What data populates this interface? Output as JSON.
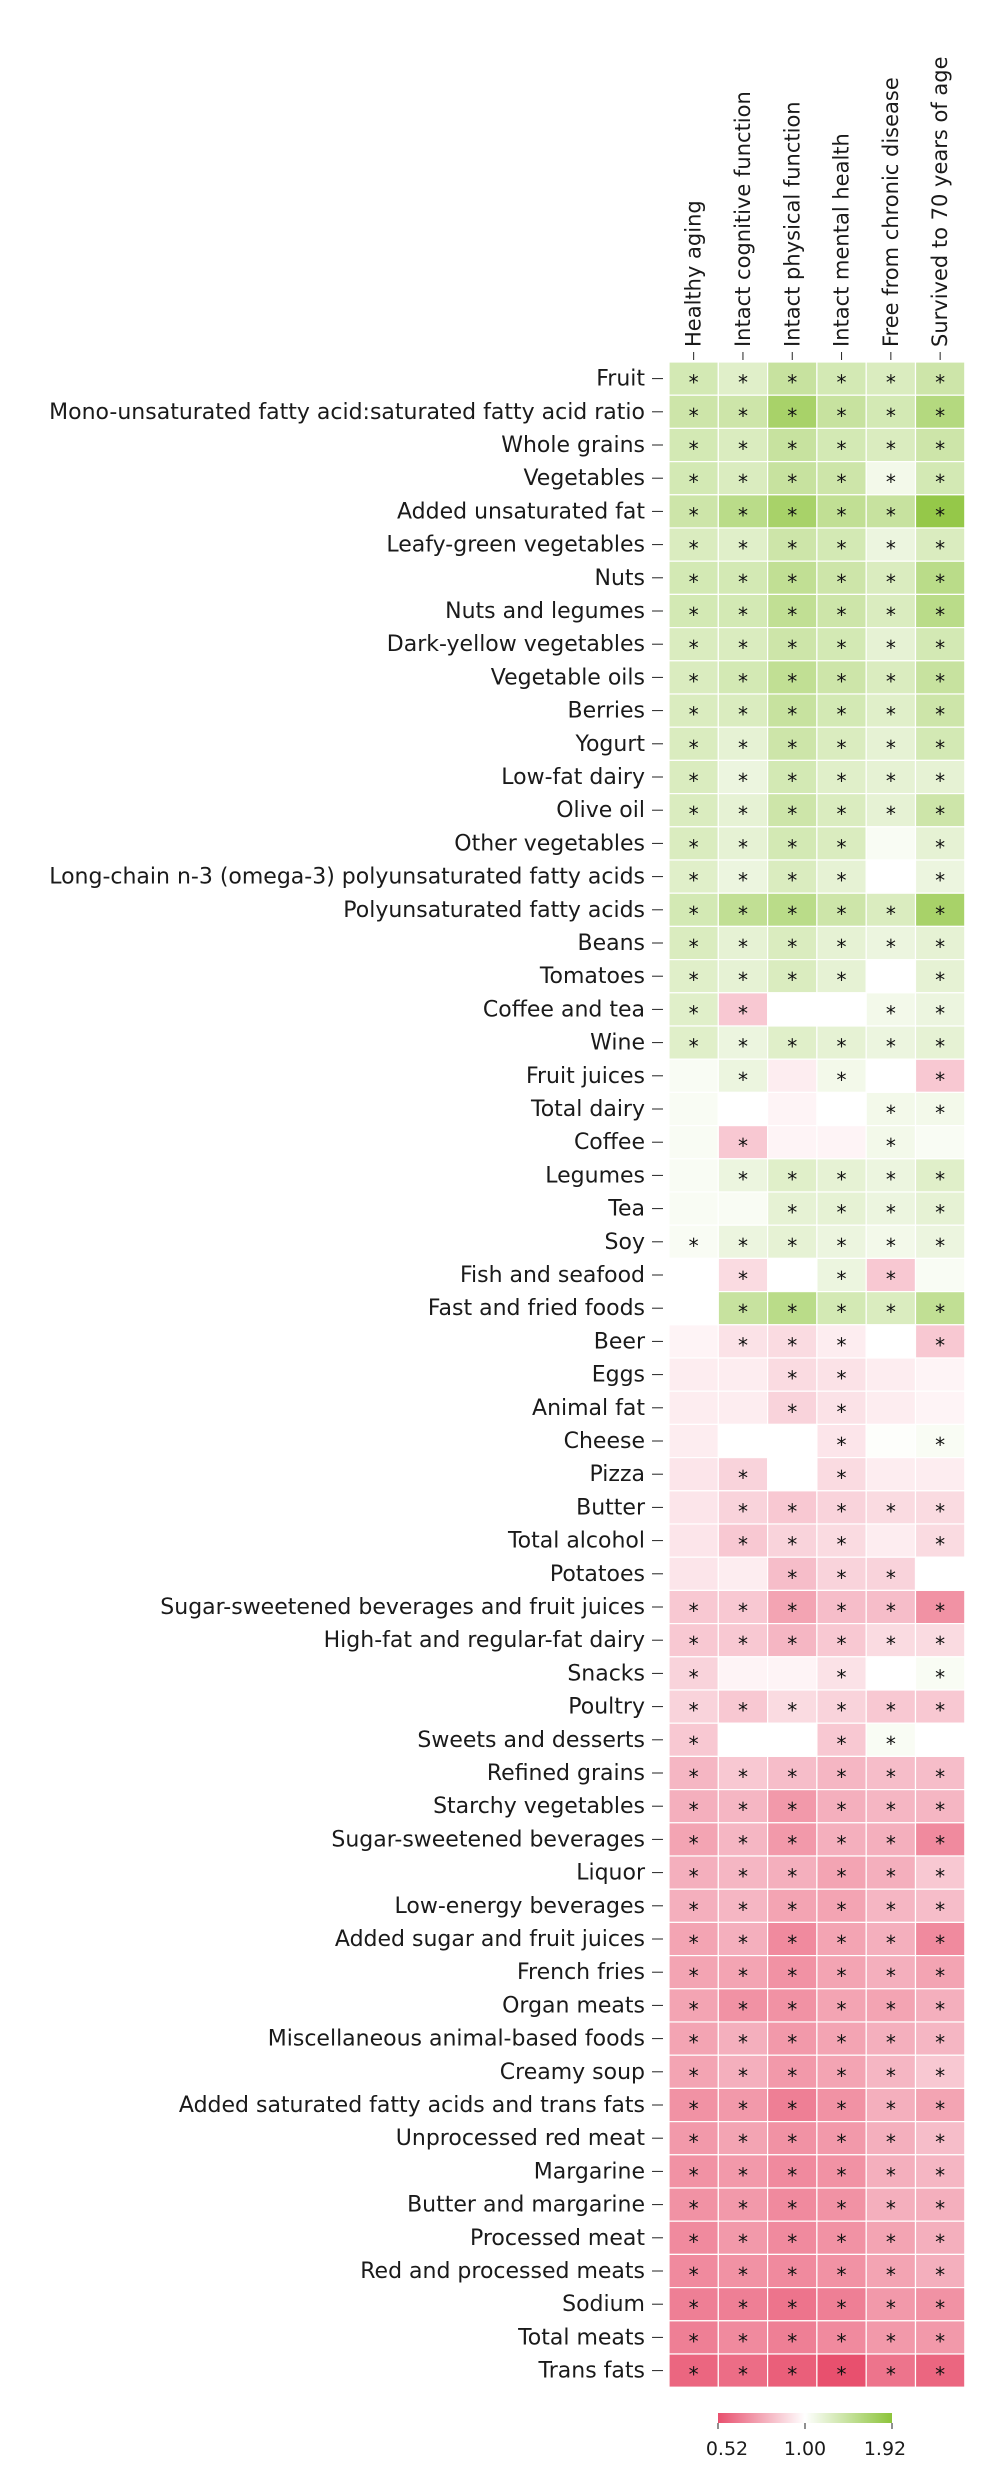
{
  "chart_data": {
    "type": "heatmap",
    "title": "",
    "columns": [
      "Healthy aging",
      "Intact cognitive function",
      "Intact physical function",
      "Intact mental health",
      "Free from chronic disease",
      "Survived to 70 years of age"
    ],
    "rows": [
      {
        "label": "Fruit",
        "values": [
          1.35,
          1.25,
          1.45,
          1.35,
          1.3,
          1.4
        ],
        "sig": [
          1,
          1,
          1,
          1,
          1,
          1
        ]
      },
      {
        "label": "Mono-unsaturated fatty acid:saturated fatty acid ratio",
        "values": [
          1.4,
          1.4,
          1.7,
          1.45,
          1.35,
          1.6
        ],
        "sig": [
          1,
          1,
          1,
          1,
          1,
          1
        ]
      },
      {
        "label": "Whole grains",
        "values": [
          1.35,
          1.3,
          1.45,
          1.35,
          1.3,
          1.4
        ],
        "sig": [
          1,
          1,
          1,
          1,
          1,
          1
        ]
      },
      {
        "label": "Vegetables",
        "values": [
          1.35,
          1.3,
          1.45,
          1.4,
          1.1,
          1.35
        ],
        "sig": [
          1,
          1,
          1,
          1,
          1,
          1
        ]
      },
      {
        "label": "Added unsaturated fat",
        "values": [
          1.4,
          1.55,
          1.7,
          1.5,
          1.45,
          1.85
        ],
        "sig": [
          1,
          1,
          1,
          1,
          1,
          1
        ]
      },
      {
        "label": "Leafy-green vegetables",
        "values": [
          1.3,
          1.25,
          1.4,
          1.35,
          1.15,
          1.3
        ],
        "sig": [
          1,
          1,
          1,
          1,
          1,
          1
        ]
      },
      {
        "label": "Nuts",
        "values": [
          1.35,
          1.35,
          1.5,
          1.4,
          1.3,
          1.55
        ],
        "sig": [
          1,
          1,
          1,
          1,
          1,
          1
        ]
      },
      {
        "label": "Nuts and legumes",
        "values": [
          1.35,
          1.35,
          1.5,
          1.4,
          1.3,
          1.55
        ],
        "sig": [
          1,
          1,
          1,
          1,
          1,
          1
        ]
      },
      {
        "label": "Dark-yellow vegetables",
        "values": [
          1.3,
          1.3,
          1.4,
          1.35,
          1.2,
          1.35
        ],
        "sig": [
          1,
          1,
          1,
          1,
          1,
          1
        ]
      },
      {
        "label": "Vegetable oils",
        "values": [
          1.3,
          1.35,
          1.5,
          1.4,
          1.3,
          1.45
        ],
        "sig": [
          1,
          1,
          1,
          1,
          1,
          1
        ]
      },
      {
        "label": "Berries",
        "values": [
          1.3,
          1.3,
          1.45,
          1.35,
          1.25,
          1.4
        ],
        "sig": [
          1,
          1,
          1,
          1,
          1,
          1
        ]
      },
      {
        "label": "Yogurt",
        "values": [
          1.3,
          1.2,
          1.4,
          1.3,
          1.2,
          1.35
        ],
        "sig": [
          1,
          1,
          1,
          1,
          1,
          1
        ]
      },
      {
        "label": "Low-fat dairy",
        "values": [
          1.3,
          1.15,
          1.35,
          1.25,
          1.2,
          1.2
        ],
        "sig": [
          1,
          1,
          1,
          1,
          1,
          1
        ]
      },
      {
        "label": "Olive oil",
        "values": [
          1.3,
          1.2,
          1.4,
          1.3,
          1.2,
          1.4
        ],
        "sig": [
          1,
          1,
          1,
          1,
          1,
          1
        ]
      },
      {
        "label": "Other vegetables",
        "values": [
          1.3,
          1.2,
          1.35,
          1.3,
          1.05,
          1.2
        ],
        "sig": [
          1,
          1,
          1,
          1,
          0,
          1
        ]
      },
      {
        "label": "Long-chain n-3 (omega-3) polyunsaturated fatty acids",
        "values": [
          1.25,
          1.15,
          1.3,
          1.2,
          1.0,
          1.15
        ],
        "sig": [
          1,
          1,
          1,
          1,
          0,
          1
        ]
      },
      {
        "label": "Polyunsaturated fatty acids",
        "values": [
          1.35,
          1.5,
          1.55,
          1.4,
          1.3,
          1.7
        ],
        "sig": [
          1,
          1,
          1,
          1,
          1,
          1
        ]
      },
      {
        "label": "Beans",
        "values": [
          1.3,
          1.2,
          1.3,
          1.2,
          1.15,
          1.2
        ],
        "sig": [
          1,
          1,
          1,
          1,
          1,
          1
        ]
      },
      {
        "label": "Tomatoes",
        "values": [
          1.25,
          1.2,
          1.3,
          1.2,
          1.0,
          1.2
        ],
        "sig": [
          1,
          1,
          1,
          1,
          0,
          1
        ]
      },
      {
        "label": "Coffee and tea",
        "values": [
          1.25,
          0.85,
          1.0,
          1.0,
          1.1,
          1.15
        ],
        "sig": [
          1,
          1,
          0,
          0,
          1,
          1
        ]
      },
      {
        "label": "Wine",
        "values": [
          1.25,
          1.15,
          1.25,
          1.2,
          1.15,
          1.2
        ],
        "sig": [
          1,
          1,
          1,
          1,
          1,
          1
        ]
      },
      {
        "label": "Fruit juices",
        "values": [
          1.05,
          1.15,
          0.95,
          1.1,
          1.0,
          0.85
        ],
        "sig": [
          0,
          1,
          0,
          1,
          0,
          1
        ]
      },
      {
        "label": "Total dairy",
        "values": [
          1.05,
          1.0,
          0.97,
          1.0,
          1.1,
          1.1
        ],
        "sig": [
          0,
          0,
          0,
          0,
          1,
          1
        ]
      },
      {
        "label": "Coffee",
        "values": [
          1.05,
          0.85,
          0.97,
          0.97,
          1.1,
          1.05
        ],
        "sig": [
          0,
          1,
          0,
          0,
          1,
          0
        ]
      },
      {
        "label": "Legumes",
        "values": [
          1.05,
          1.15,
          1.25,
          1.2,
          1.15,
          1.25
        ],
        "sig": [
          0,
          1,
          1,
          1,
          1,
          1
        ]
      },
      {
        "label": "Tea",
        "values": [
          1.05,
          1.05,
          1.2,
          1.2,
          1.15,
          1.2
        ],
        "sig": [
          0,
          0,
          1,
          1,
          1,
          1
        ]
      },
      {
        "label": "Soy",
        "values": [
          1.05,
          1.15,
          1.2,
          1.15,
          1.1,
          1.15
        ],
        "sig": [
          1,
          1,
          1,
          1,
          1,
          1
        ]
      },
      {
        "label": "Fish and seafood",
        "values": [
          1.0,
          0.9,
          1.0,
          1.15,
          0.85,
          1.05
        ],
        "sig": [
          0,
          1,
          0,
          1,
          1,
          0
        ]
      },
      {
        "label": "Fast and fried foods",
        "values": [
          1.0,
          1.45,
          1.55,
          1.35,
          1.3,
          1.5
        ],
        "sig": [
          0,
          1,
          1,
          1,
          1,
          1
        ]
      },
      {
        "label": "Beer",
        "values": [
          0.97,
          0.92,
          0.9,
          0.95,
          1.0,
          0.85
        ],
        "sig": [
          0,
          1,
          1,
          1,
          0,
          1
        ]
      },
      {
        "label": "Eggs",
        "values": [
          0.95,
          0.95,
          0.9,
          0.92,
          0.95,
          0.97
        ],
        "sig": [
          0,
          0,
          1,
          1,
          0,
          0
        ]
      },
      {
        "label": "Animal fat",
        "values": [
          0.95,
          0.95,
          0.88,
          0.92,
          0.95,
          0.97
        ],
        "sig": [
          0,
          0,
          1,
          1,
          0,
          0
        ]
      },
      {
        "label": "Cheese",
        "values": [
          0.95,
          1.0,
          1.0,
          0.93,
          1.02,
          1.05
        ],
        "sig": [
          0,
          0,
          0,
          1,
          0,
          1
        ]
      },
      {
        "label": "Pizza",
        "values": [
          0.93,
          0.88,
          1.0,
          0.9,
          0.95,
          0.95
        ],
        "sig": [
          0,
          1,
          0,
          1,
          0,
          0
        ]
      },
      {
        "label": "Butter",
        "values": [
          0.93,
          0.88,
          0.85,
          0.88,
          0.9,
          0.9
        ],
        "sig": [
          0,
          1,
          1,
          1,
          1,
          1
        ]
      },
      {
        "label": "Total alcohol",
        "values": [
          0.93,
          0.85,
          0.88,
          0.9,
          0.95,
          0.9
        ],
        "sig": [
          0,
          1,
          1,
          1,
          0,
          1
        ]
      },
      {
        "label": "Potatoes",
        "values": [
          0.93,
          0.95,
          0.82,
          0.88,
          0.88,
          1.0
        ],
        "sig": [
          0,
          0,
          1,
          1,
          1,
          0
        ]
      },
      {
        "label": "Sugar-sweetened beverages and fruit juices",
        "values": [
          0.85,
          0.85,
          0.75,
          0.82,
          0.82,
          0.7
        ],
        "sig": [
          1,
          1,
          1,
          1,
          1,
          1
        ]
      },
      {
        "label": "High-fat and regular-fat dairy",
        "values": [
          0.85,
          0.85,
          0.8,
          0.85,
          0.9,
          0.9
        ],
        "sig": [
          1,
          1,
          1,
          1,
          1,
          1
        ]
      },
      {
        "label": "Snacks",
        "values": [
          0.88,
          0.97,
          0.97,
          0.92,
          1.0,
          1.05
        ],
        "sig": [
          1,
          0,
          0,
          1,
          0,
          1
        ]
      },
      {
        "label": "Poultry",
        "values": [
          0.88,
          0.85,
          0.9,
          0.88,
          0.85,
          0.85
        ],
        "sig": [
          1,
          1,
          1,
          1,
          1,
          1
        ]
      },
      {
        "label": "Sweets and desserts",
        "values": [
          0.85,
          1.0,
          1.0,
          0.85,
          1.05,
          1.0
        ],
        "sig": [
          1,
          0,
          0,
          1,
          1,
          0
        ]
      },
      {
        "label": "Refined grains",
        "values": [
          0.8,
          0.85,
          0.82,
          0.8,
          0.82,
          0.82
        ],
        "sig": [
          1,
          1,
          1,
          1,
          1,
          1
        ]
      },
      {
        "label": "Starchy vegetables",
        "values": [
          0.78,
          0.8,
          0.72,
          0.78,
          0.8,
          0.8
        ],
        "sig": [
          1,
          1,
          1,
          1,
          1,
          1
        ]
      },
      {
        "label": "Sugar-sweetened beverages",
        "values": [
          0.75,
          0.8,
          0.72,
          0.78,
          0.78,
          0.68
        ],
        "sig": [
          1,
          1,
          1,
          1,
          1,
          1
        ]
      },
      {
        "label": "Liquor",
        "values": [
          0.78,
          0.8,
          0.78,
          0.75,
          0.78,
          0.85
        ],
        "sig": [
          1,
          1,
          1,
          1,
          1,
          1
        ]
      },
      {
        "label": "Low-energy beverages",
        "values": [
          0.78,
          0.8,
          0.75,
          0.75,
          0.8,
          0.82
        ],
        "sig": [
          1,
          1,
          1,
          1,
          1,
          1
        ]
      },
      {
        "label": "Added sugar and fruit juices",
        "values": [
          0.75,
          0.78,
          0.68,
          0.75,
          0.78,
          0.68
        ],
        "sig": [
          1,
          1,
          1,
          1,
          1,
          1
        ]
      },
      {
        "label": "French fries",
        "values": [
          0.75,
          0.75,
          0.7,
          0.75,
          0.78,
          0.75
        ],
        "sig": [
          1,
          1,
          1,
          1,
          1,
          1
        ]
      },
      {
        "label": "Organ meats",
        "values": [
          0.75,
          0.7,
          0.7,
          0.75,
          0.75,
          0.78
        ],
        "sig": [
          1,
          1,
          1,
          1,
          1,
          1
        ]
      },
      {
        "label": "Miscellaneous animal-based foods",
        "values": [
          0.75,
          0.78,
          0.72,
          0.75,
          0.78,
          0.8
        ],
        "sig": [
          1,
          1,
          1,
          1,
          1,
          1
        ]
      },
      {
        "label": "Creamy soup",
        "values": [
          0.75,
          0.78,
          0.72,
          0.75,
          0.8,
          0.85
        ],
        "sig": [
          1,
          1,
          1,
          1,
          1,
          1
        ]
      },
      {
        "label": "Added saturated fatty acids and trans fats",
        "values": [
          0.7,
          0.72,
          0.65,
          0.7,
          0.78,
          0.75
        ],
        "sig": [
          1,
          1,
          1,
          1,
          1,
          1
        ]
      },
      {
        "label": "Unprocessed red meat",
        "values": [
          0.72,
          0.75,
          0.7,
          0.72,
          0.78,
          0.82
        ],
        "sig": [
          1,
          1,
          1,
          1,
          1,
          1
        ]
      },
      {
        "label": "Margarine",
        "values": [
          0.7,
          0.72,
          0.68,
          0.7,
          0.78,
          0.8
        ],
        "sig": [
          1,
          1,
          1,
          1,
          1,
          1
        ]
      },
      {
        "label": "Butter and margarine",
        "values": [
          0.7,
          0.72,
          0.68,
          0.7,
          0.78,
          0.78
        ],
        "sig": [
          1,
          1,
          1,
          1,
          1,
          1
        ]
      },
      {
        "label": "Processed meat",
        "values": [
          0.68,
          0.72,
          0.68,
          0.7,
          0.75,
          0.78
        ],
        "sig": [
          1,
          1,
          1,
          1,
          1,
          1
        ]
      },
      {
        "label": "Red and processed meats",
        "values": [
          0.68,
          0.7,
          0.68,
          0.7,
          0.75,
          0.78
        ],
        "sig": [
          1,
          1,
          1,
          1,
          1,
          1
        ]
      },
      {
        "label": "Sodium",
        "values": [
          0.65,
          0.65,
          0.62,
          0.65,
          0.72,
          0.7
        ],
        "sig": [
          1,
          1,
          1,
          1,
          1,
          1
        ]
      },
      {
        "label": "Total meats",
        "values": [
          0.65,
          0.68,
          0.65,
          0.68,
          0.72,
          0.72
        ],
        "sig": [
          1,
          1,
          1,
          1,
          1,
          1
        ]
      },
      {
        "label": "Trans fats",
        "values": [
          0.58,
          0.6,
          0.56,
          0.52,
          0.62,
          0.58
        ],
        "sig": [
          1,
          1,
          1,
          1,
          1,
          1
        ]
      }
    ],
    "significance_marker": "*",
    "colorscale": {
      "min": 0.52,
      "mid": 1.0,
      "max": 1.92,
      "colors": {
        "low": "#e8506e",
        "mid": "#ffffff",
        "high": "#8cc43a"
      },
      "tick_labels": [
        "0.52",
        "1.00",
        "1.92"
      ]
    }
  }
}
